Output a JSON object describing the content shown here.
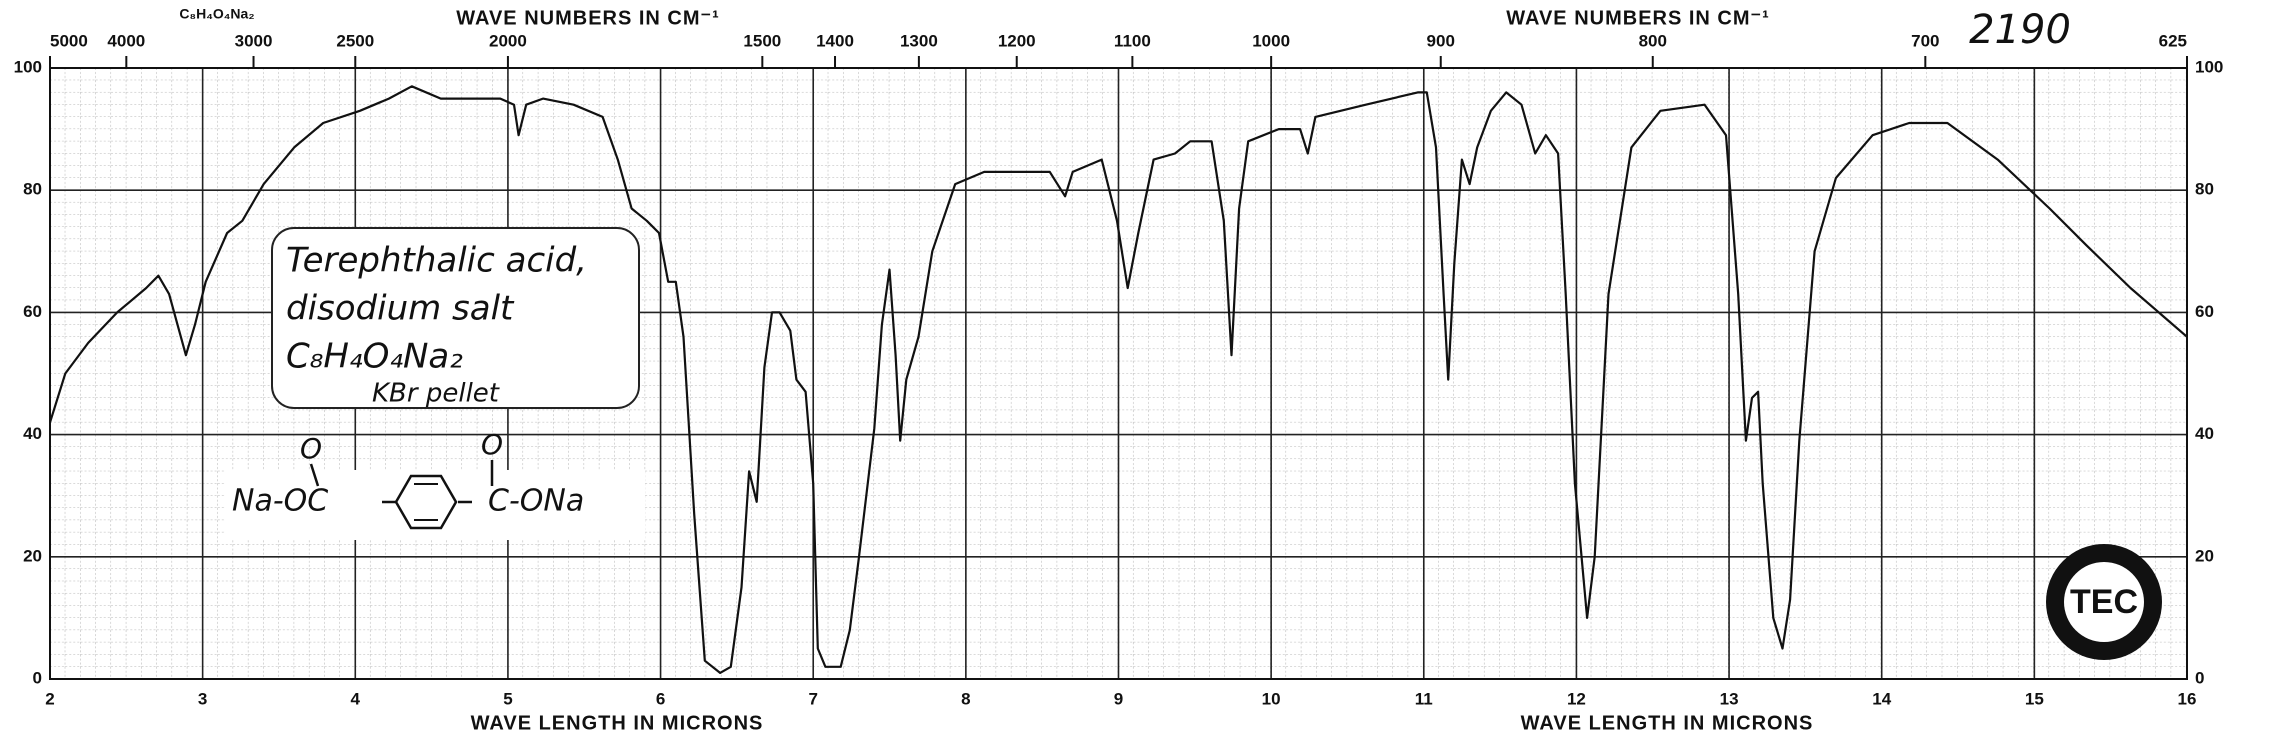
{
  "chart_data": {
    "type": "line",
    "formula_label": "C₈H₄O₄Na₂",
    "top_axis_label": "WAVE NUMBERS IN CM⁻¹",
    "x_axis_label": "WAVE LENGTH IN MICRONS",
    "chart_number": "2190",
    "annotations": [
      "Terephthalic acid,",
      "disodium salt",
      "C₈H₄O₄Na₂",
      "KBr pellet"
    ],
    "structure": [
      "O",
      "Na-OC",
      "O",
      "C-ONa"
    ],
    "logo": "TEC",
    "xlim": [
      2,
      16
    ],
    "xticks": [
      2,
      3,
      4,
      5,
      6,
      7,
      8,
      9,
      10,
      11,
      12,
      13,
      14,
      15,
      16
    ],
    "x2lim": [
      5000,
      625
    ],
    "x2ticks": [
      5000,
      4000,
      3000,
      2500,
      2000,
      1500,
      1400,
      1300,
      1200,
      1100,
      1000,
      900,
      800,
      700,
      625
    ],
    "ylim": [
      0,
      100
    ],
    "yticks": [
      0,
      20,
      40,
      60,
      80,
      100
    ],
    "grid": true,
    "x": [
      2.0,
      2.1,
      2.25,
      2.44,
      2.63,
      2.71,
      2.78,
      2.89,
      2.95,
      3.02,
      3.16,
      3.26,
      3.4,
      3.6,
      3.79,
      4.03,
      4.22,
      4.37,
      4.56,
      4.95,
      5.04,
      5.07,
      5.12,
      5.23,
      5.43,
      5.62,
      5.72,
      5.81,
      5.91,
      5.99,
      6.05,
      6.1,
      6.15,
      6.22,
      6.29,
      6.39,
      6.46,
      6.53,
      6.58,
      6.63,
      6.68,
      6.73,
      6.78,
      6.85,
      6.89,
      6.95,
      7.0,
      7.03,
      7.08,
      7.18,
      7.24,
      7.3,
      7.4,
      7.45,
      7.5,
      7.54,
      7.57,
      7.61,
      7.69,
      7.78,
      7.93,
      8.12,
      8.31,
      8.55,
      8.65,
      8.7,
      8.89,
      8.99,
      9.06,
      9.13,
      9.23,
      9.37,
      9.47,
      9.61,
      9.69,
      9.74,
      9.79,
      9.85,
      10.05,
      10.19,
      10.24,
      10.29,
      10.62,
      10.96,
      11.02,
      11.08,
      11.13,
      11.16,
      11.2,
      11.25,
      11.3,
      11.35,
      11.44,
      11.54,
      11.64,
      11.73,
      11.8,
      11.88,
      11.93,
      11.99,
      12.07,
      12.12,
      12.21,
      12.36,
      12.55,
      12.84,
      12.98,
      13.06,
      13.11,
      13.15,
      13.19,
      13.22,
      13.29,
      13.35,
      13.4,
      13.46,
      13.56,
      13.7,
      13.94,
      14.18,
      14.43,
      14.76,
      15.1,
      15.34,
      15.63,
      16.0
    ],
    "series": [
      {
        "name": "Transmittance",
        "color": "#111111",
        "values": [
          42,
          50,
          55,
          60,
          64,
          66,
          63,
          53,
          58,
          65,
          73,
          75,
          81,
          87,
          91,
          93,
          95,
          97,
          95,
          95,
          94,
          89,
          94,
          95,
          94,
          92,
          85,
          77,
          75,
          73,
          65,
          65,
          56,
          27,
          3,
          1,
          2,
          15,
          34,
          29,
          51,
          60,
          60,
          57,
          49,
          47,
          32,
          5,
          2,
          2,
          8,
          20,
          41,
          58,
          67,
          53,
          39,
          49,
          56,
          70,
          81,
          83,
          83,
          83,
          79,
          83,
          85,
          75,
          64,
          73,
          85,
          86,
          88,
          88,
          75,
          53,
          77,
          88,
          90,
          90,
          86,
          92,
          94,
          96,
          96,
          87,
          63,
          49,
          68,
          85,
          81,
          87,
          93,
          96,
          94,
          86,
          89,
          86,
          63,
          32,
          10,
          20,
          63,
          87,
          93,
          94,
          89,
          63,
          39,
          46,
          47,
          32,
          10,
          5,
          13,
          39,
          70,
          82,
          89,
          91,
          91,
          85,
          77,
          71,
          64,
          56
        ]
      }
    ]
  }
}
